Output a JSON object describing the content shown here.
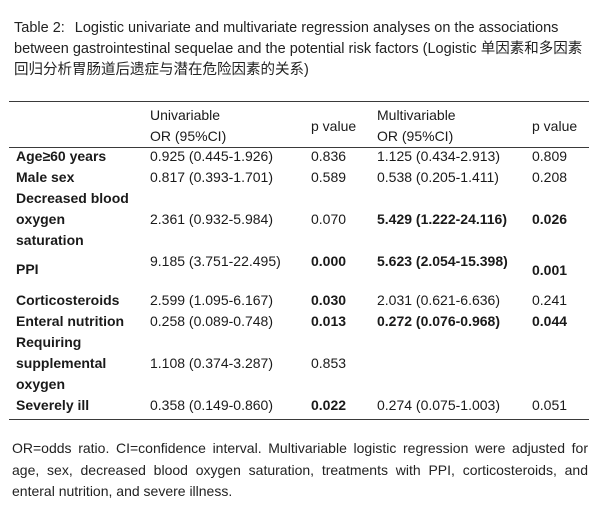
{
  "table": {
    "label": "Table 2:",
    "title": "Logistic univariate and multivariate regression analyses on the associations between gastrointestinal sequelae and the potential risk factors (Logistic 单因素和多因素回归分析胃肠道后遗症与潜在危险因素的关系)",
    "headers": {
      "univariable": [
        "Univariable",
        "OR (95%CI)"
      ],
      "p_value_1": "p value",
      "multivariable": [
        "Multivariable",
        "OR (95%CI)"
      ],
      "p_value_2": "p value"
    },
    "rows": [
      {
        "factor": [
          "Age≥60 years"
        ],
        "uni_or": "0.925 (0.445-1.926)",
        "uni_p": "0.836",
        "multi_or": "1.125 (0.434-2.913)",
        "multi_p": "0.809"
      },
      {
        "factor": [
          "Male sex"
        ],
        "uni_or": "0.817 (0.393-1.701)",
        "uni_p": "0.589",
        "multi_or": "0.538 (0.205-1.411)",
        "multi_p": "0.208"
      },
      {
        "factor": [
          "Decreased blood",
          "oxygen",
          "saturation"
        ],
        "uni_or": "2.361 (0.932-5.984)",
        "uni_p": "0.070",
        "multi_or": "5.429 (1.222-24.116)",
        "multi_p": "0.026"
      },
      {
        "factor": [
          "PPI"
        ],
        "uni_or": "9.185 (3.751-22.495)",
        "uni_p": "0.000",
        "multi_or": "5.623 (2.054-15.398)",
        "multi_p": "0.001"
      },
      {
        "factor": [
          "Corticosteroids"
        ],
        "uni_or": "2.599 (1.095-6.167)",
        "uni_p": "0.030",
        "multi_or": "2.031 (0.621-6.636)",
        "multi_p": "0.241"
      },
      {
        "factor": [
          "Enteral nutrition"
        ],
        "uni_or": "0.258 (0.089-0.748)",
        "uni_p": "0.013",
        "multi_or": "0.272 (0.076-0.968)",
        "multi_p": "0.044"
      },
      {
        "factor": [
          "Requiring",
          "supplemental",
          "oxygen"
        ],
        "uni_or": "1.108 (0.374-3.287)",
        "uni_p": "0.853",
        "multi_or": "",
        "multi_p": ""
      },
      {
        "factor": [
          "Severely ill"
        ],
        "uni_or": "0.358 (0.149-0.860)",
        "uni_p": "0.022",
        "multi_or": "0.274 (0.075-1.003)",
        "multi_p": "0.051"
      }
    ],
    "footnote": "OR=odds ratio. CI=confidence interval. Multivariable logistic regression were adjusted for age, sex, decreased blood oxygen saturation, treatments with PPI, corticosteroids, and enteral nutrition, and severe illness."
  }
}
